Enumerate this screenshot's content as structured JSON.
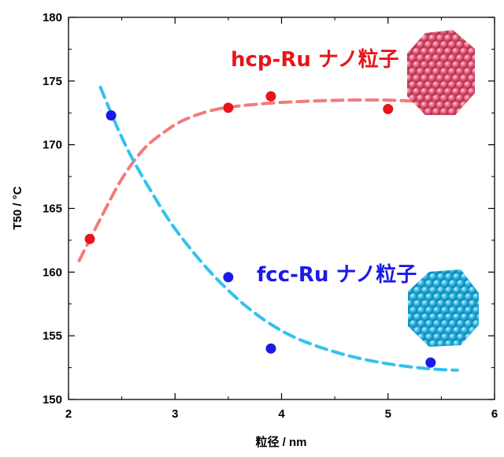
{
  "chart_data": {
    "type": "scatter",
    "xlabel": "粒径 / nm",
    "ylabel": "T50 / °C",
    "xlim": [
      2,
      6
    ],
    "ylim": [
      150,
      180
    ],
    "xticks": [
      "2",
      "3",
      "4",
      "5",
      "6"
    ],
    "yticks": [
      "150",
      "155",
      "160",
      "165",
      "170",
      "175",
      "180"
    ],
    "grid": false,
    "series": [
      {
        "name": "hcp-Ru ナノ粒子",
        "color": "#e8151b",
        "fit_color": "#f47b7b",
        "points": [
          [
            2.2,
            162.6
          ],
          [
            3.5,
            172.9
          ],
          [
            3.9,
            173.8
          ],
          [
            5.0,
            172.8
          ]
        ],
        "fit": [
          [
            2.1,
            160.9
          ],
          [
            2.3,
            164.2
          ],
          [
            2.5,
            167.3
          ],
          [
            2.7,
            169.6
          ],
          [
            2.9,
            171.0
          ],
          [
            3.1,
            172.0
          ],
          [
            3.4,
            172.8
          ],
          [
            3.8,
            173.2
          ],
          [
            4.2,
            173.4
          ],
          [
            4.6,
            173.5
          ],
          [
            5.0,
            173.5
          ],
          [
            5.3,
            173.4
          ]
        ]
      },
      {
        "name": "fcc-Ru ナノ粒子",
        "color": "#1a1ae8",
        "fit_color": "#33c2ee",
        "points": [
          [
            2.4,
            172.3
          ],
          [
            3.5,
            159.6
          ],
          [
            3.9,
            154.0
          ],
          [
            5.4,
            152.9
          ]
        ],
        "fit": [
          [
            2.3,
            174.5
          ],
          [
            2.45,
            171.5
          ],
          [
            2.6,
            168.9
          ],
          [
            2.8,
            166.0
          ],
          [
            3.0,
            163.4
          ],
          [
            3.3,
            160.3
          ],
          [
            3.6,
            157.8
          ],
          [
            3.9,
            155.9
          ],
          [
            4.2,
            154.6
          ],
          [
            4.6,
            153.5
          ],
          [
            5.0,
            152.8
          ],
          [
            5.4,
            152.4
          ],
          [
            5.65,
            152.3
          ]
        ]
      }
    ]
  },
  "annotations": {
    "hcp_label": "hcp-Ru ナノ粒子",
    "fcc_label": "fcc-Ru ナノ粒子"
  },
  "particle_images": {
    "hcp": {
      "color": "#e85a78"
    },
    "fcc": {
      "color": "#2bb7e8"
    }
  }
}
